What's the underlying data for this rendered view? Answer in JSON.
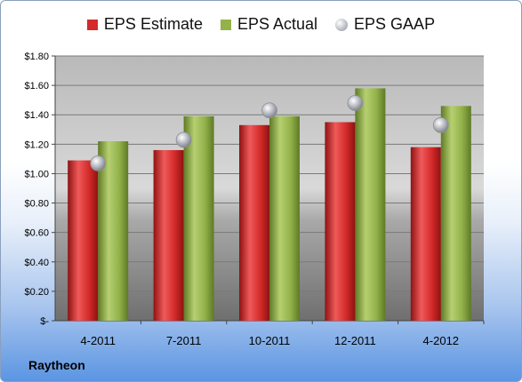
{
  "company": "Raytheon",
  "colors": {
    "estimate": "#d42a2a",
    "actual": "#93b24a",
    "gaap": "#b9bcc2"
  },
  "chart_data": {
    "type": "bar",
    "categories": [
      "4-2011",
      "7-2011",
      "10-2011",
      "12-2011",
      "4-2012"
    ],
    "series": [
      {
        "name": "EPS Estimate",
        "kind": "bar",
        "values": [
          1.09,
          1.16,
          1.33,
          1.35,
          1.18
        ]
      },
      {
        "name": "EPS Actual",
        "kind": "bar",
        "values": [
          1.22,
          1.39,
          1.39,
          1.58,
          1.46
        ]
      },
      {
        "name": "EPS GAAP",
        "kind": "scatter",
        "values": [
          1.07,
          1.23,
          1.43,
          1.48,
          1.33
        ]
      }
    ],
    "ylim": [
      0,
      1.8
    ],
    "yticks": [
      0,
      0.2,
      0.4,
      0.6,
      0.8,
      1.0,
      1.2,
      1.4,
      1.6,
      1.8
    ],
    "ytick_labels": [
      "$-",
      "$0.20",
      "$0.40",
      "$0.60",
      "$0.80",
      "$1.00",
      "$1.20",
      "$1.40",
      "$1.60",
      "$1.80"
    ],
    "grid": true,
    "legend_position": "top"
  }
}
